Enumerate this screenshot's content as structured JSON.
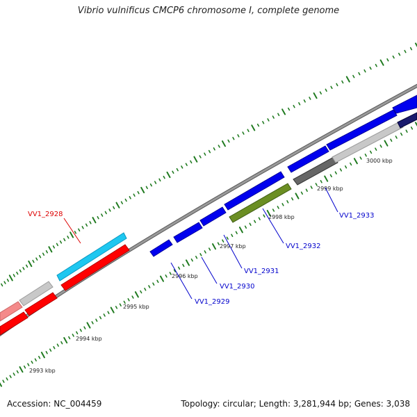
{
  "title": "Vibrio vulnificus CMCP6 chromosome I, complete genome",
  "accession_text": "Accession: NC_004459",
  "summary_text": "Topology: circular; Length: 3,281,944 bp; Genes: 3,038",
  "colors": {
    "backbone": "#8c8c8c",
    "tick": "#1f7a1f",
    "forward_gene": "#0000ee",
    "reverse_gene": "#ff0000",
    "highlight_gene": "#22bbee",
    "rna_gene": "#6b8e23",
    "other_gene": "#c8c8c8",
    "dark_gene": "#666666"
  },
  "tick_labels": [
    "2993 kbp",
    "2994 kbp",
    "2995 kbp",
    "2996 kbp",
    "2997 kbp",
    "2998 kbp",
    "2999 kbp",
    "3000 kbp"
  ],
  "gene_labels": [
    {
      "name": "VV1_2928",
      "color": "#dd0000"
    },
    {
      "name": "VV1_2929",
      "color": "#0000cc"
    },
    {
      "name": "VV1_2930",
      "color": "#0000cc"
    },
    {
      "name": "VV1_2931",
      "color": "#0000cc"
    },
    {
      "name": "VV1_2932",
      "color": "#0000cc"
    },
    {
      "name": "VV1_2933",
      "color": "#0000cc"
    }
  ]
}
